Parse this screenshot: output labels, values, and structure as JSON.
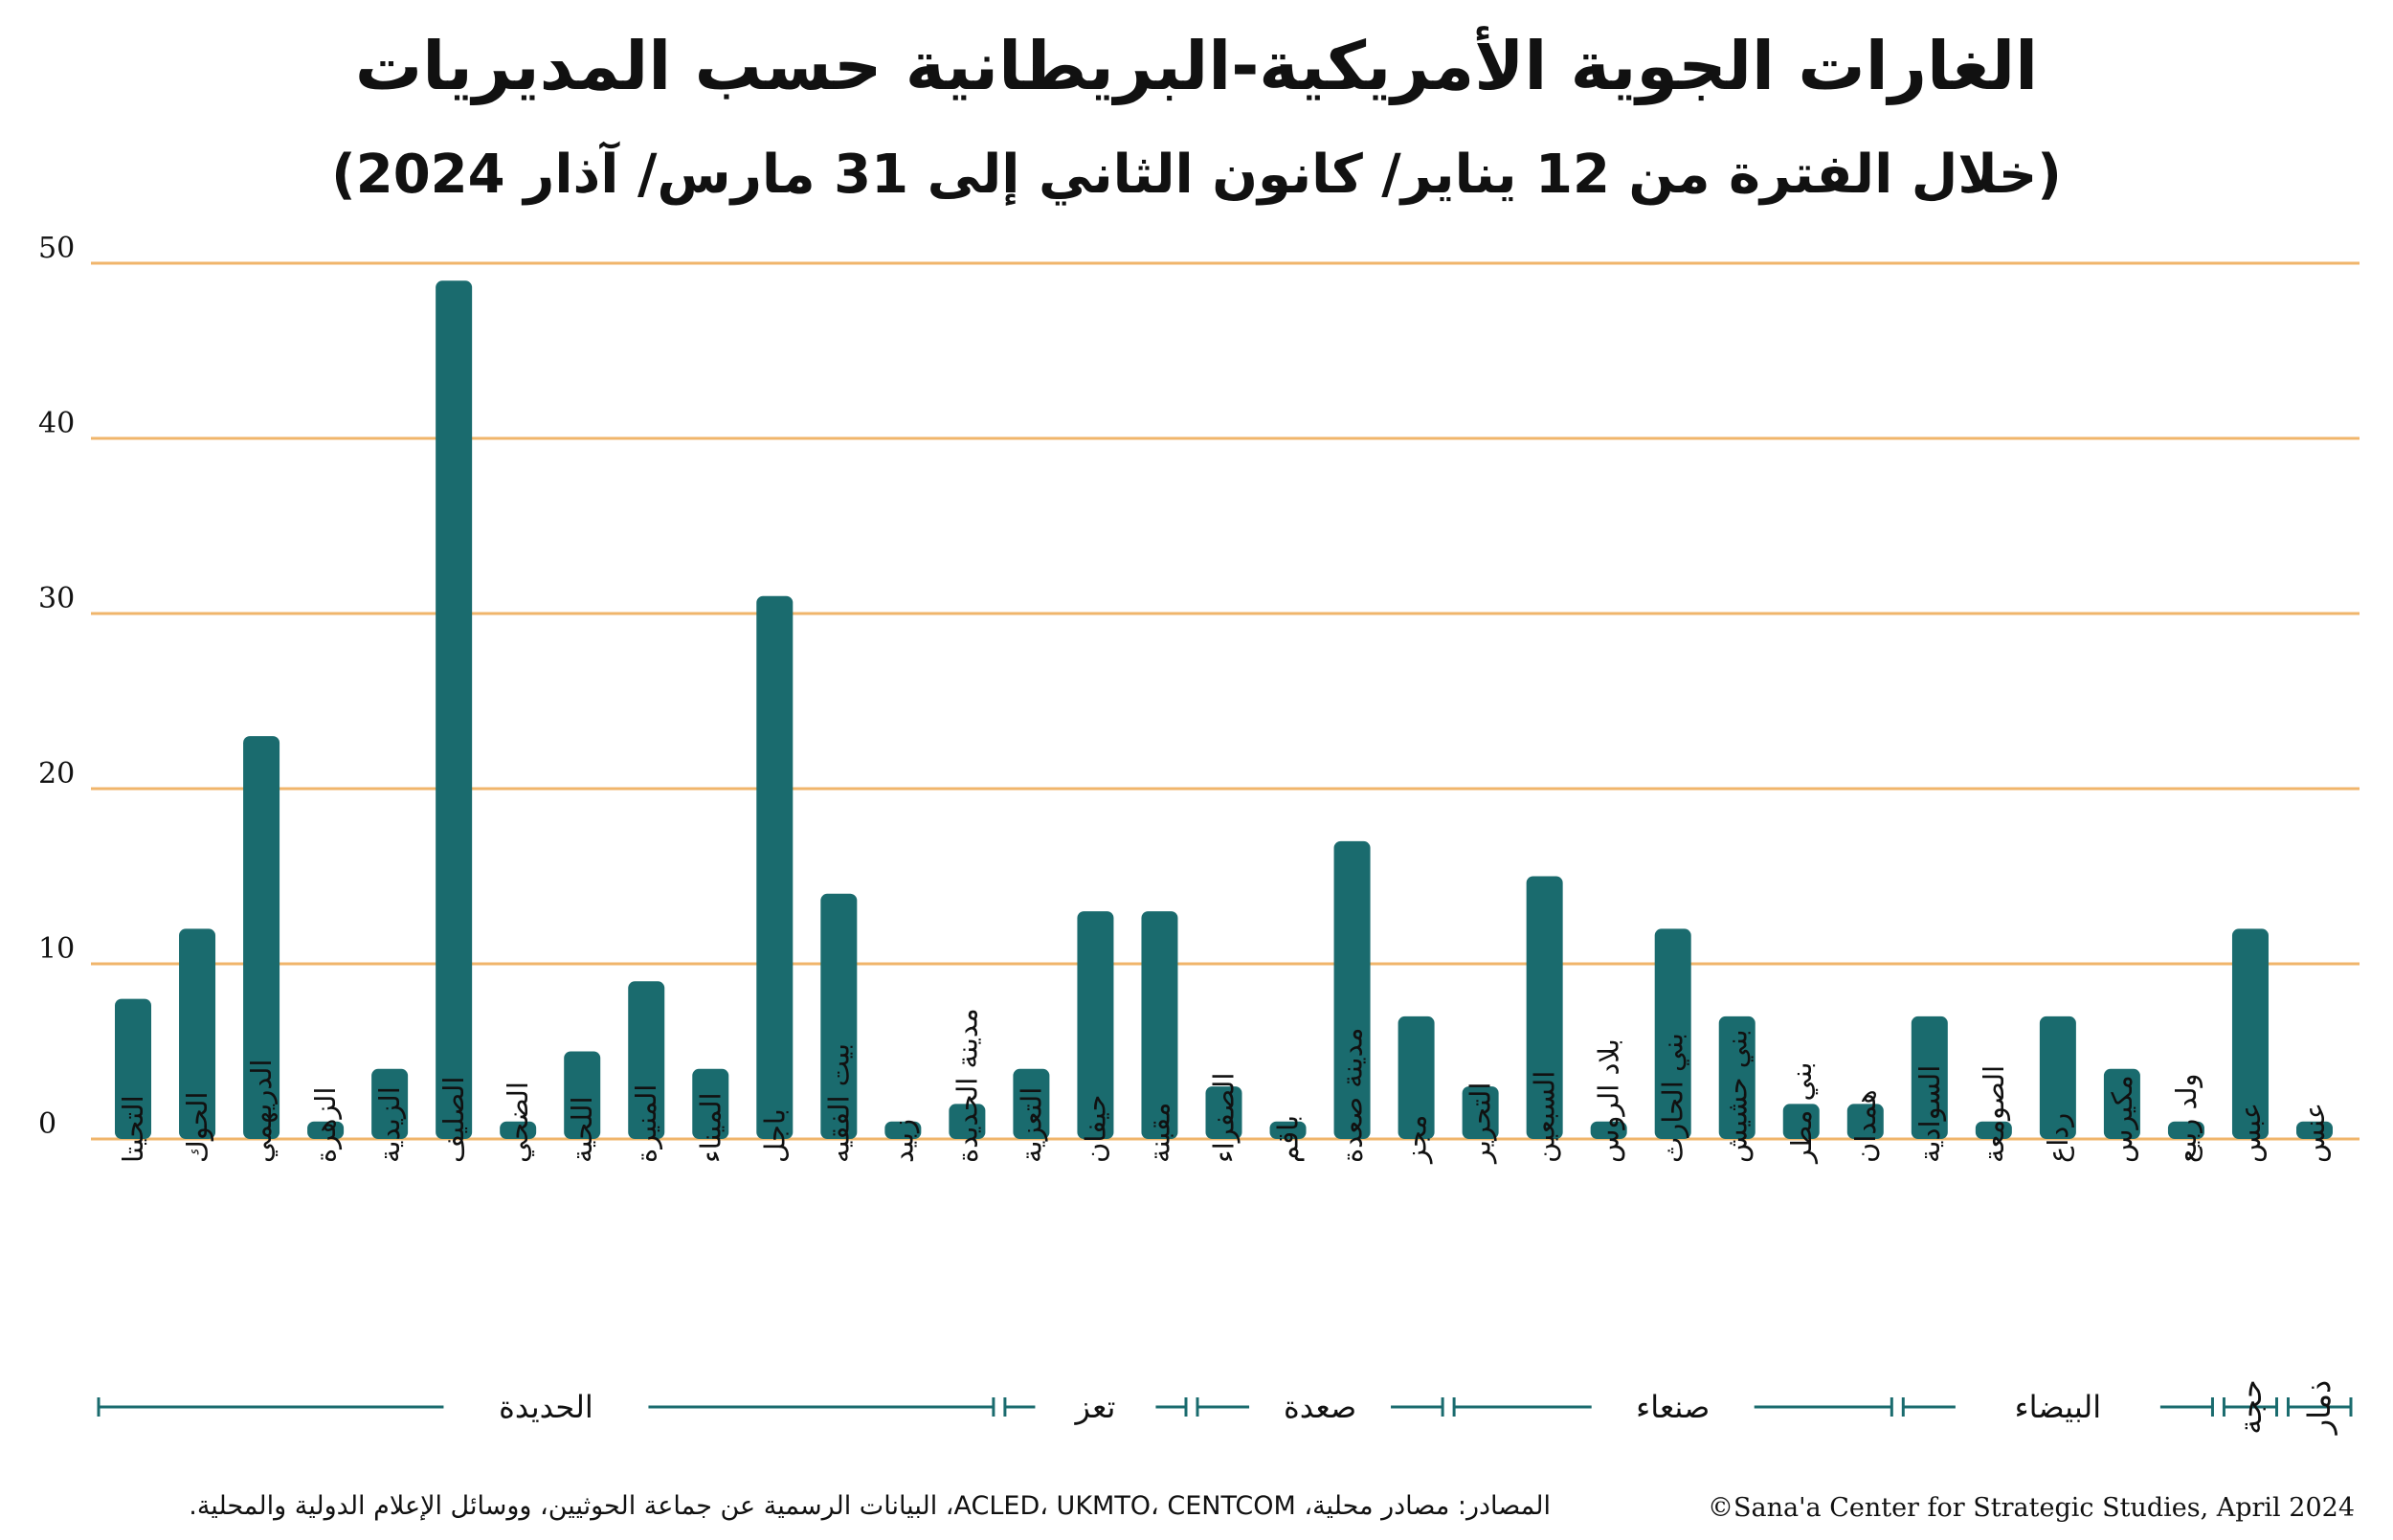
{
  "title": "الغارات الجوية الأمريكية-البريطانية حسب المديريات",
  "subtitle": "(خلال الفترة من 12 يناير/ كانون الثاني إلى 31 مارس/ آذار 2024)",
  "footer": {
    "source": "المصادر: مصادر محلية، ACLED، UKMTO، CENTCOM، البيانات الرسمية عن جماعة الحوثيين، ووسائل الإعلام الدولية والمحلية.",
    "credit": "©Sana'a Center for Strategic Studies, April 2024"
  },
  "colors": {
    "bar": "#1a6b6e",
    "grid": "#f0b56b",
    "group_line": "#1a6b6e"
  },
  "chart_data": {
    "type": "bar",
    "title": "الغارات الجوية الأمريكية-البريطانية حسب المديريات",
    "subtitle": "(خلال الفترة من 12 يناير/ كانون الثاني إلى 31 مارس/ آذار 2024)",
    "xlabel": "",
    "ylabel": "",
    "ylim": [
      0,
      50
    ],
    "yticks": [
      0,
      10,
      20,
      30,
      40,
      50
    ],
    "grid": true,
    "categories": [
      "التحيتا",
      "الحوك",
      "الدريهمي",
      "الزهرة",
      "الزيدية",
      "الصليف",
      "الضحي",
      "اللحية",
      "المنيرة",
      "الميناء",
      "باجل",
      "بيت الفقيه",
      "زبيد",
      "مدينة الحديدة",
      "التعزية",
      "حيفان",
      "مقبنة",
      "الصفراء",
      "باقم",
      "مدينة صعدة",
      "مجز",
      "التحرير",
      "السبعين",
      "بلاد الروس",
      "بني الحارث",
      "بني حشيش",
      "بني مطر",
      "همدان",
      "السوادية",
      "الصومعة",
      "رداع",
      "مكيرس",
      "ولد ربيع",
      "عبس",
      "عنس"
    ],
    "values": [
      8,
      12,
      23,
      1,
      4,
      49,
      1,
      5,
      9,
      4,
      31,
      14,
      1,
      2,
      4,
      13,
      13,
      3,
      1,
      17,
      7,
      3,
      15,
      1,
      12,
      7,
      2,
      2,
      7,
      1,
      7,
      4,
      1,
      12,
      1
    ],
    "groups": [
      {
        "name": "الحديدة",
        "start": 0,
        "end": 13
      },
      {
        "name": "تعز",
        "start": 14,
        "end": 16
      },
      {
        "name": "صعدة",
        "start": 17,
        "end": 20
      },
      {
        "name": "صنعاء",
        "start": 21,
        "end": 27
      },
      {
        "name": "البيضاء",
        "start": 28,
        "end": 32
      },
      {
        "name": "حجة",
        "start": 33,
        "end": 33
      },
      {
        "name": "ذمار",
        "start": 34,
        "end": 34
      }
    ]
  }
}
